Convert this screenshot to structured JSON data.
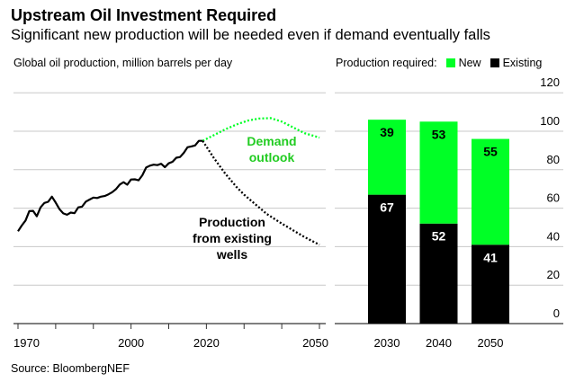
{
  "title": "Upstream Oil Investment Required",
  "subtitle": "Significant new production will be needed even if demand eventually falls",
  "source": "Source: BloombergNEF",
  "colors": {
    "new": "#00ff26",
    "existing": "#000000",
    "demand_label": "#22cc22",
    "grid": "#c8c8c8"
  },
  "chart_data": [
    {
      "type": "line",
      "title": "Global oil production, million barrels per day",
      "xlim": [
        1970,
        2050
      ],
      "ylim": [
        0,
        120
      ],
      "x_ticks": [
        1970,
        1980,
        1990,
        2000,
        2010,
        2020,
        2030,
        2040,
        2050
      ],
      "x_tick_labels": [
        "1970",
        "2000",
        "2020",
        "2050"
      ],
      "x_tick_label_values": [
        1970,
        2000,
        2020,
        2050
      ],
      "grid": true,
      "series": [
        {
          "key": "historical",
          "style": "solid",
          "x": [
            1970,
            1971,
            1972,
            1973,
            1974,
            1975,
            1976,
            1977,
            1978,
            1979,
            1980,
            1981,
            1982,
            1983,
            1984,
            1985,
            1986,
            1987,
            1988,
            1989,
            1990,
            1991,
            1992,
            1993,
            1994,
            1995,
            1996,
            1997,
            1998,
            1999,
            2000,
            2001,
            2002,
            2003,
            2004,
            2005,
            2006,
            2007,
            2008,
            2009,
            2010,
            2011,
            2012,
            2013,
            2014,
            2015,
            2016,
            2017,
            2018,
            2019
          ],
          "y": [
            48,
            51,
            53.6,
            58.5,
            58.6,
            55.8,
            60.4,
            62.7,
            63.3,
            66,
            62.9,
            59.5,
            57.3,
            56.6,
            57.7,
            57.4,
            60.4,
            60.8,
            63.4,
            64.5,
            65.5,
            65.3,
            66,
            66.3,
            67.2,
            68.3,
            69.9,
            72.3,
            73.5,
            72.2,
            74.9,
            75,
            74.5,
            77.1,
            81.1,
            82.1,
            82.6,
            82.4,
            83.1,
            81.3,
            83.3,
            84.1,
            86.2,
            86.6,
            88.8,
            91.7,
            92.1,
            92.6,
            95,
            95
          ]
        },
        {
          "key": "demand",
          "name": "Demand outlook",
          "style": "dotted",
          "x": [
            2019,
            2022,
            2025,
            2028,
            2031,
            2034,
            2037,
            2040,
            2043,
            2046,
            2049,
            2050
          ],
          "y": [
            95,
            98,
            101,
            103.5,
            105.5,
            106.6,
            106.8,
            105,
            102,
            99,
            97.3,
            96.7
          ]
        },
        {
          "key": "existing",
          "name": "Production from existing wells",
          "style": "dotted",
          "x": [
            2019,
            2022,
            2025,
            2028,
            2030,
            2033,
            2036,
            2040,
            2043,
            2046,
            2050
          ],
          "y": [
            95,
            86,
            78,
            71,
            67,
            62,
            57,
            52,
            48.5,
            45,
            41
          ]
        }
      ],
      "annotations": {
        "demand": [
          "Demand",
          "outlook"
        ],
        "existing": [
          "Production",
          "from existing",
          "wells"
        ]
      }
    },
    {
      "type": "bar",
      "stacked": true,
      "legend_title": "Production required:",
      "legend_position": "top",
      "categories": [
        "2030",
        "2040",
        "2050"
      ],
      "series": [
        {
          "name": "Existing",
          "values": [
            67,
            52,
            41
          ]
        },
        {
          "name": "New",
          "values": [
            39,
            53,
            55
          ]
        }
      ],
      "ylim": [
        0,
        120
      ],
      "y_ticks": [
        "0",
        "20",
        "40",
        "60",
        "80",
        "100",
        "120"
      ],
      "y_axis_position": "right",
      "grid": true
    }
  ]
}
